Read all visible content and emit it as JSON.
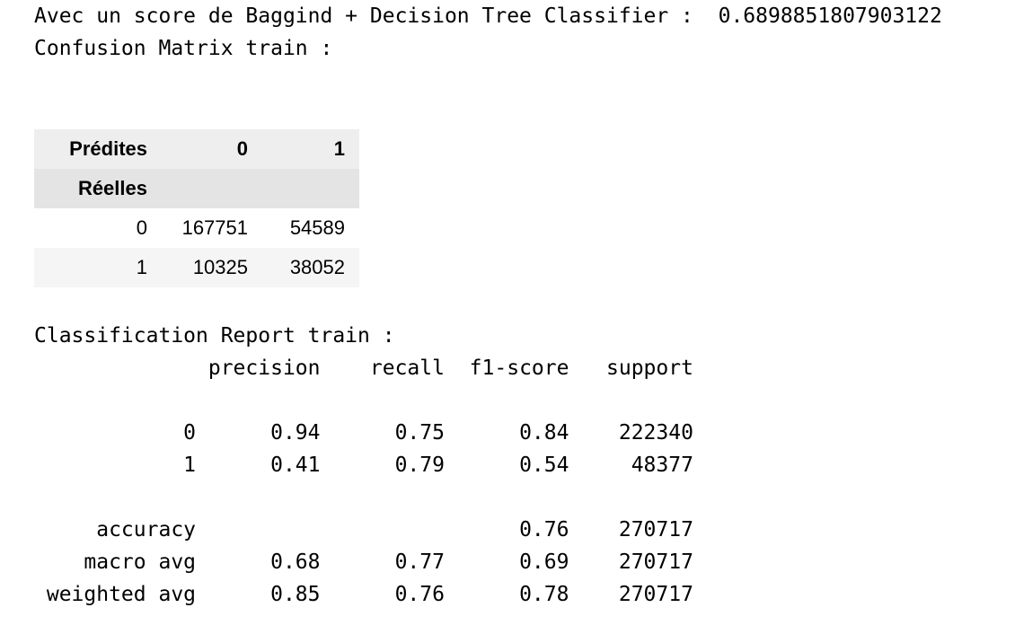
{
  "output": {
    "score_line": "Avec un score de Baggind + Decision Tree Classifier :  0.6898851807903122",
    "confusion_title": "Confusion Matrix train :",
    "confusion_table": {
      "columns_label": "Prédites",
      "index_label": "Réelles",
      "columns": [
        "0",
        "1"
      ],
      "rows": [
        {
          "index": "0",
          "values": [
            "167751",
            "54589"
          ]
        },
        {
          "index": "1",
          "values": [
            "10325",
            "38052"
          ]
        }
      ]
    },
    "report_title": "Classification Report train :",
    "report": {
      "header": [
        "precision",
        "recall",
        "f1-score",
        "support"
      ],
      "rows": [
        {
          "label": "0",
          "precision": "0.94",
          "recall": "0.75",
          "f1": "0.84",
          "support": "222340"
        },
        {
          "label": "1",
          "precision": "0.41",
          "recall": "0.79",
          "f1": "0.54",
          "support": "48377"
        },
        {
          "label": "accuracy",
          "precision": "",
          "recall": "",
          "f1": "0.76",
          "support": "270717"
        },
        {
          "label": "macro avg",
          "precision": "0.68",
          "recall": "0.77",
          "f1": "0.69",
          "support": "270717"
        },
        {
          "label": "weighted avg",
          "precision": "0.85",
          "recall": "0.76",
          "f1": "0.78",
          "support": "270717"
        }
      ]
    }
  }
}
